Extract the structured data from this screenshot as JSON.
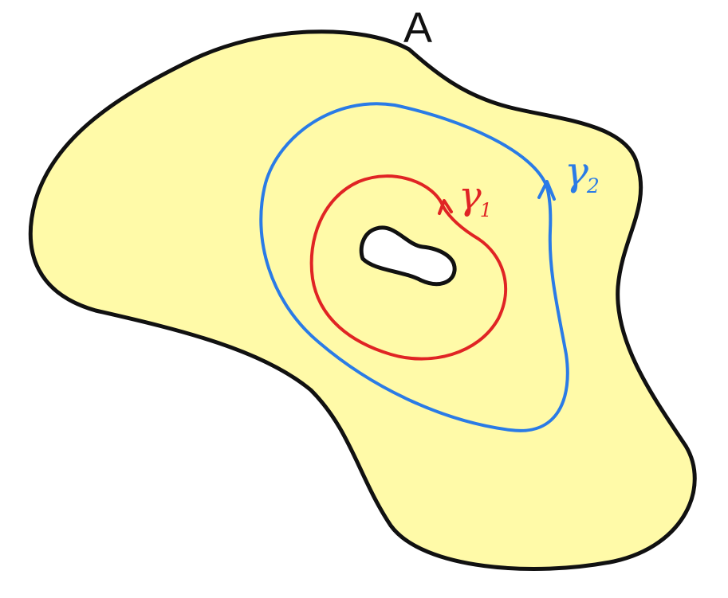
{
  "region": {
    "label": "A",
    "fill": "#fffaa8",
    "outline": "#111111"
  },
  "curves": {
    "gamma1": {
      "symbol": "γ",
      "subscript": "1",
      "color": "#e02424"
    },
    "gamma2": {
      "symbol": "γ",
      "subscript": "2",
      "color": "#2a7be6"
    }
  }
}
